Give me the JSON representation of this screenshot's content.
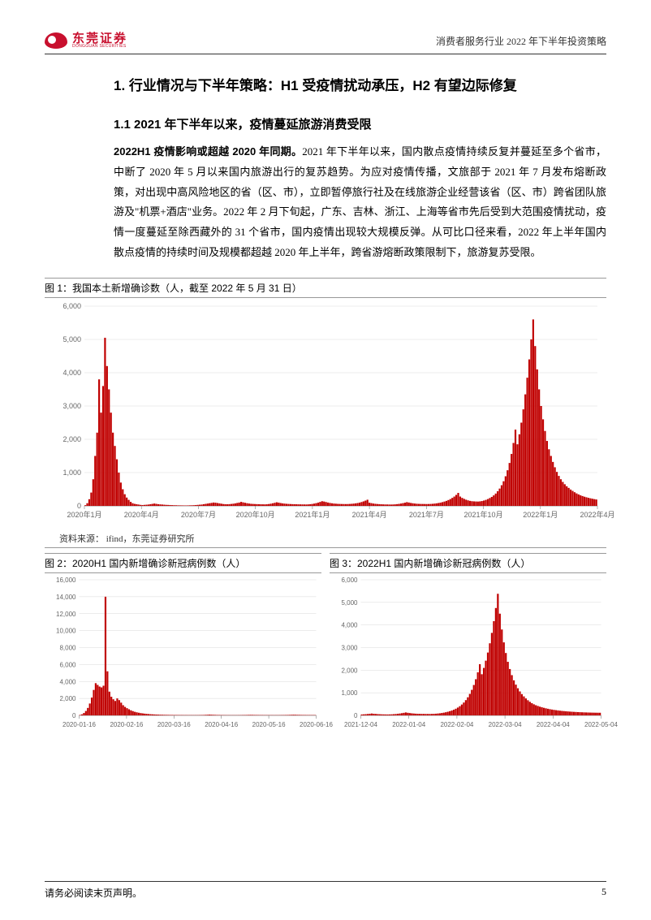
{
  "header": {
    "logo_cn": "东莞证券",
    "logo_en": "DONGGUAN SECURITIES",
    "right_text": "消费者服务行业 2022 年下半年投资策略"
  },
  "h1": "1.  行业情况与下半年策略：H1 受疫情扰动承压，H2 有望边际修复",
  "h2": "1.1 2021 年下半年以来，疫情蔓延旅游消费受限",
  "para1_bold": "2022H1 疫情影响或超越 2020 年同期。",
  "para1": "2021 年下半年以来，国内散点疫情持续反复并蔓延至多个省市，中断了 2020 年 5 月以来国内旅游出行的复苏趋势。为应对疫情传播，文旅部于 2021 年 7 月发布熔断政策，对出现中高风险地区的省（区、市），立即暂停旅行社及在线旅游企业经营该省（区、市）跨省团队旅游及\"机票+酒店\"业务。2022 年 2 月下旬起，广东、吉林、浙江、上海等省市先后受到大范围疫情扰动，疫情一度蔓延至除西藏外的 31 个省市，国内疫情出现较大规模反弹。从可比口径来看，2022 年上半年国内散点疫情的持续时间及规模都超越 2020 年上半年，跨省游熔断政策限制下，旅游复苏受限。",
  "fig1": {
    "caption": "图 1：我国本土新增确诊数（人，截至 2022 年 5 月 31 日）",
    "source": "资料来源：   ifind，东莞证券研究所",
    "type": "bar",
    "ylim": [
      0,
      6000
    ],
    "ytick_step": 1000,
    "bar_color": "#c00000",
    "grid_color": "#d9d9d9",
    "axis_color": "#808080",
    "label_color": "#666666",
    "label_fontsize": 9,
    "x_labels": [
      "2020年1月",
      "2020年4月",
      "2020年7月",
      "2020年10月",
      "2021年1月",
      "2021年4月",
      "2021年7月",
      "2021年10月",
      "2022年1月",
      "2022年4月"
    ],
    "values": [
      20,
      80,
      200,
      400,
      800,
      1500,
      2200,
      3800,
      2800,
      3600,
      5050,
      4200,
      3500,
      2800,
      2200,
      1800,
      1400,
      1000,
      700,
      500,
      350,
      250,
      180,
      120,
      80,
      60,
      50,
      40,
      30,
      25,
      30,
      35,
      40,
      50,
      60,
      70,
      60,
      50,
      45,
      40,
      35,
      30,
      28,
      25,
      22,
      20,
      18,
      16,
      15,
      14,
      13,
      12,
      14,
      16,
      18,
      20,
      25,
      30,
      35,
      40,
      50,
      60,
      70,
      80,
      90,
      100,
      95,
      85,
      75,
      65,
      55,
      50,
      48,
      52,
      58,
      65,
      75,
      88,
      100,
      120,
      105,
      92,
      80,
      70,
      62,
      58,
      55,
      52,
      50,
      48,
      46,
      45,
      48,
      55,
      65,
      78,
      92,
      108,
      98,
      85,
      75,
      68,
      62,
      58,
      55,
      52,
      50,
      48,
      46,
      45,
      44,
      43,
      42,
      45,
      50,
      58,
      68,
      82,
      98,
      118,
      140,
      130,
      115,
      100,
      88,
      78,
      70,
      65,
      60,
      58,
      56,
      55,
      54,
      55,
      58,
      62,
      68,
      75,
      85,
      98,
      115,
      135,
      158,
      185,
      95,
      82,
      70,
      62,
      56,
      52,
      48,
      45,
      43,
      42,
      41,
      40,
      42,
      46,
      52,
      60,
      70,
      82,
      96,
      112,
      100,
      88,
      78,
      70,
      64,
      60,
      58,
      57,
      56,
      55,
      56,
      58,
      62,
      68,
      76,
      86,
      98,
      112,
      130,
      150,
      175,
      205,
      240,
      280,
      330,
      390,
      280,
      240,
      210,
      185,
      165,
      150,
      140,
      135,
      132,
      130,
      135,
      145,
      160,
      180,
      205,
      235,
      270,
      315,
      370,
      440,
      520,
      620,
      740,
      890,
      1070,
      1290,
      1560,
      1890,
      2290,
      1850,
      2150,
      2500,
      2900,
      3350,
      3850,
      4400,
      5000,
      5600,
      4800,
      4100,
      3500,
      3000,
      2600,
      2250,
      1950,
      1700,
      1500,
      1320,
      1160,
      1020,
      900,
      800,
      720,
      650,
      590,
      540,
      490,
      450,
      410,
      375,
      345,
      318,
      295,
      275,
      258,
      242,
      228,
      215,
      203,
      192
    ]
  },
  "fig2": {
    "caption": "图 2：2020H1 国内新增确诊新冠病例数（人）",
    "type": "bar",
    "ylim": [
      0,
      16000
    ],
    "ytick_step": 2000,
    "bar_color": "#c00000",
    "grid_color": "#d9d9d9",
    "axis_color": "#808080",
    "label_color": "#666666",
    "label_fontsize": 8,
    "x_labels": [
      "2020-01-16",
      "2020-02-16",
      "2020-03-16",
      "2020-04-16",
      "2020-05-16",
      "2020-06-16"
    ],
    "values": [
      50,
      120,
      280,
      520,
      880,
      1400,
      2100,
      3000,
      3800,
      3600,
      3400,
      3300,
      3500,
      14000,
      5200,
      2800,
      2200,
      1900,
      1700,
      2000,
      1800,
      1500,
      1200,
      1000,
      850,
      720,
      600,
      500,
      420,
      360,
      310,
      270,
      235,
      205,
      180,
      158,
      138,
      122,
      108,
      96,
      86,
      78,
      71,
      65,
      60,
      56,
      52,
      49,
      46,
      43,
      41,
      39,
      37,
      35,
      34,
      33,
      32,
      31,
      30,
      30,
      32,
      35,
      40,
      48,
      58,
      70,
      85,
      75,
      65,
      56,
      49,
      43,
      38,
      34,
      31,
      29,
      27,
      26,
      25,
      25,
      26,
      28,
      31,
      35,
      40,
      46,
      53,
      60,
      55,
      50,
      46,
      42,
      39,
      36,
      34,
      32,
      31,
      30,
      29,
      28,
      28,
      29,
      31,
      34,
      38,
      43,
      49,
      56,
      64,
      73,
      66,
      60,
      55,
      50,
      46,
      43,
      40,
      38,
      36,
      35,
      34
    ]
  },
  "fig3": {
    "caption": "图 3：2022H1 国内新增确诊新冠病例数（人）",
    "type": "bar",
    "ylim": [
      0,
      6000
    ],
    "ytick_step": 1000,
    "bar_color": "#c00000",
    "grid_color": "#d9d9d9",
    "axis_color": "#808080",
    "label_color": "#666666",
    "label_fontsize": 8,
    "x_labels": [
      "2021-12-04",
      "2022-01-04",
      "2022-02-04",
      "2022-03-04",
      "2022-04-04",
      "2022-05-04"
    ],
    "values": [
      40,
      45,
      52,
      60,
      70,
      82,
      72,
      63,
      56,
      50,
      46,
      43,
      41,
      40,
      42,
      46,
      52,
      60,
      70,
      82,
      96,
      112,
      130,
      115,
      102,
      91,
      82,
      75,
      70,
      67,
      65,
      64,
      63,
      62,
      62,
      64,
      68,
      74,
      82,
      92,
      105,
      120,
      138,
      160,
      186,
      216,
      252,
      294,
      345,
      406,
      480,
      568,
      674,
      800,
      950,
      1130,
      1345,
      1600,
      1905,
      2265,
      1820,
      2100,
      2420,
      2780,
      3190,
      3650,
      4170,
      4750,
      5380,
      4500,
      3800,
      3230,
      2760,
      2370,
      2050,
      1780,
      1550,
      1360,
      1200,
      1060,
      940,
      840,
      750,
      670,
      600,
      540,
      490,
      450,
      415,
      385,
      358,
      334,
      312,
      292,
      274,
      258,
      244,
      231,
      219,
      208,
      198,
      189,
      181,
      174,
      167,
      161,
      155,
      150,
      145,
      141,
      137,
      133,
      130,
      127,
      124,
      122,
      120,
      118,
      117,
      116
    ]
  },
  "footer": {
    "left": "请务必阅读末页声明。",
    "page": "5"
  }
}
